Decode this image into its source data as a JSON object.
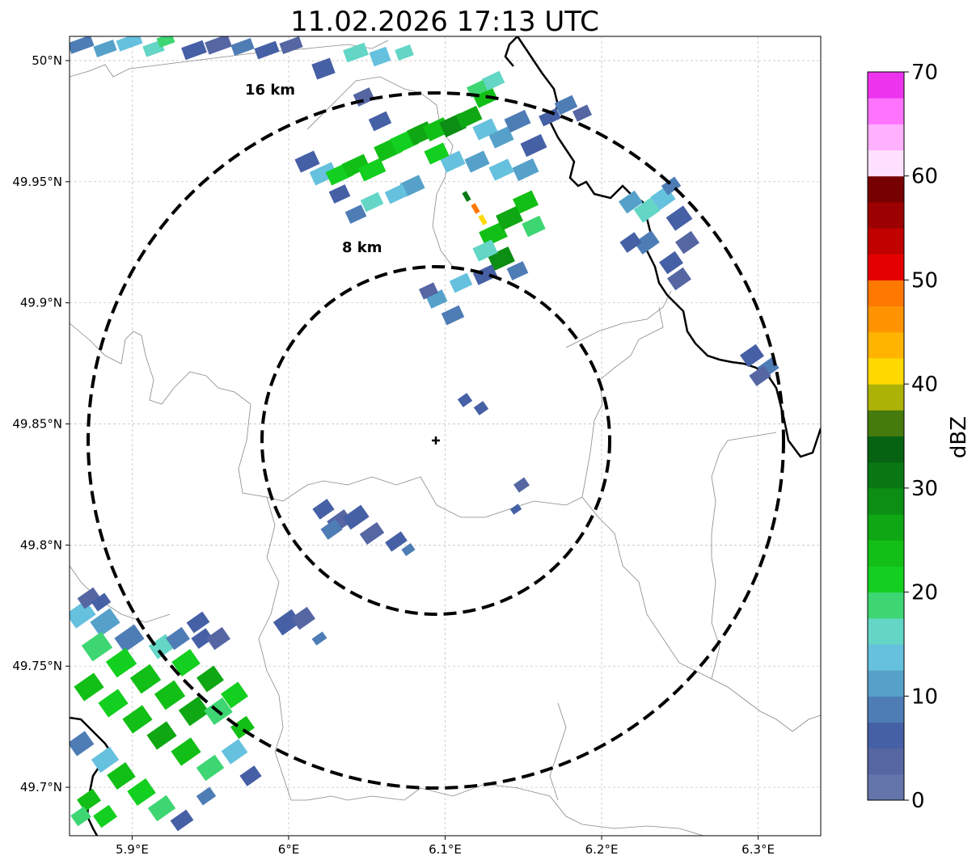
{
  "title": "11.02.2026 17:13 UTC",
  "map": {
    "x_ticks": [
      "5.9°E",
      "6°E",
      "6.1°E",
      "6.2°E",
      "6.3°E"
    ],
    "y_ticks": [
      "50°N",
      "49.95°N",
      "49.9°N",
      "49.85°N",
      "49.8°N",
      "49.75°N",
      "49.7°N"
    ],
    "lon_range": [
      5.86,
      6.34
    ],
    "lat_range": [
      49.68,
      50.01
    ],
    "gridlines": true,
    "radar_site": {
      "lon": 6.095,
      "lat": 49.843
    },
    "range_rings": [
      {
        "label": "8 km",
        "radius_km": 8
      },
      {
        "label": "16 km",
        "radius_km": 16
      }
    ]
  },
  "colorbar": {
    "label": "dBZ",
    "ticks": [
      "0",
      "10",
      "20",
      "30",
      "40",
      "50",
      "60",
      "70"
    ],
    "range": [
      0,
      70
    ],
    "colors": [
      "#6375aa",
      "#5566a3",
      "#4660a6",
      "#4e7db6",
      "#56a1ca",
      "#65c1dd",
      "#63d6c6",
      "#3dd672",
      "#13cf1f",
      "#12bf16",
      "#0fa713",
      "#0c8d14",
      "#097814",
      "#066311",
      "#457a0c",
      "#adb207",
      "#ffd900",
      "#ffb500",
      "#ff9400",
      "#ff7800",
      "#e40000",
      "#c10000",
      "#9d0000",
      "#770000",
      "#ffe0ff",
      "#ffb0ff",
      "#ff73ff",
      "#ee33ee"
    ]
  },
  "legend_colors": {
    "ring": "#000000",
    "border_major": "#000000",
    "border_minor": "#888888",
    "grid": "#bbbbbb"
  }
}
